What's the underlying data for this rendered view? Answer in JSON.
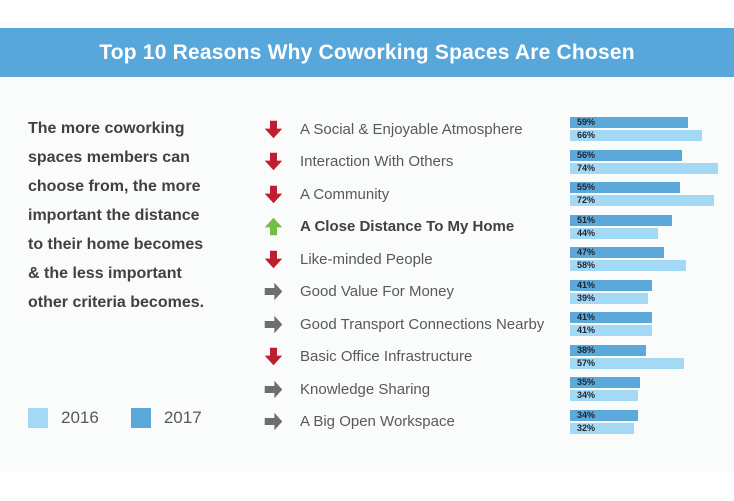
{
  "header": {
    "title": "Top 10 Reasons Why Coworking Spaces Are Chosen",
    "background_color": "#58a7db"
  },
  "note": {
    "text": "The more coworking\nspaces members can\nchoose from, the more\nimportant the distance\nto their home becomes\n& the less important\nother criteria becomes."
  },
  "legend": {
    "items": [
      {
        "label": "2016",
        "color": "#a4d9f6"
      },
      {
        "label": "2017",
        "color": "#5ba8db"
      }
    ]
  },
  "chart_data": {
    "type": "bar",
    "orientation": "horizontal",
    "title": "Top 10 Reasons Why Coworking Spaces Are Chosen",
    "categories": [
      "A Social & Enjoyable Atmosphere",
      "Interaction With Others",
      "A Community",
      "A Close Distance To My Home",
      "Like-minded People",
      "Good Value For Money",
      "Good Transport Connections Nearby",
      "Basic Office Infrastructure",
      "Knowledge Sharing",
      "A Big Open Workspace"
    ],
    "series": [
      {
        "name": "2017",
        "color": "#5ba8db",
        "values": [
          59,
          56,
          55,
          51,
          47,
          41,
          41,
          38,
          35,
          34
        ]
      },
      {
        "name": "2016",
        "color": "#a4d9f6",
        "values": [
          66,
          74,
          72,
          44,
          58,
          39,
          41,
          57,
          34,
          32
        ]
      }
    ],
    "series_order_top_to_bottom": [
      "2017",
      "2016"
    ],
    "trends": [
      "down",
      "down",
      "down",
      "up",
      "down",
      "right",
      "right",
      "down",
      "right",
      "right"
    ],
    "trend_colors": {
      "down": "#be1e2d",
      "up": "#72bf44",
      "right": "#6d6e71"
    },
    "emphasized_index": 3,
    "value_suffix": "%",
    "xlim": [
      0,
      80
    ],
    "grid": false,
    "legend_position": "bottom-left",
    "value_labels": "inside-start"
  }
}
